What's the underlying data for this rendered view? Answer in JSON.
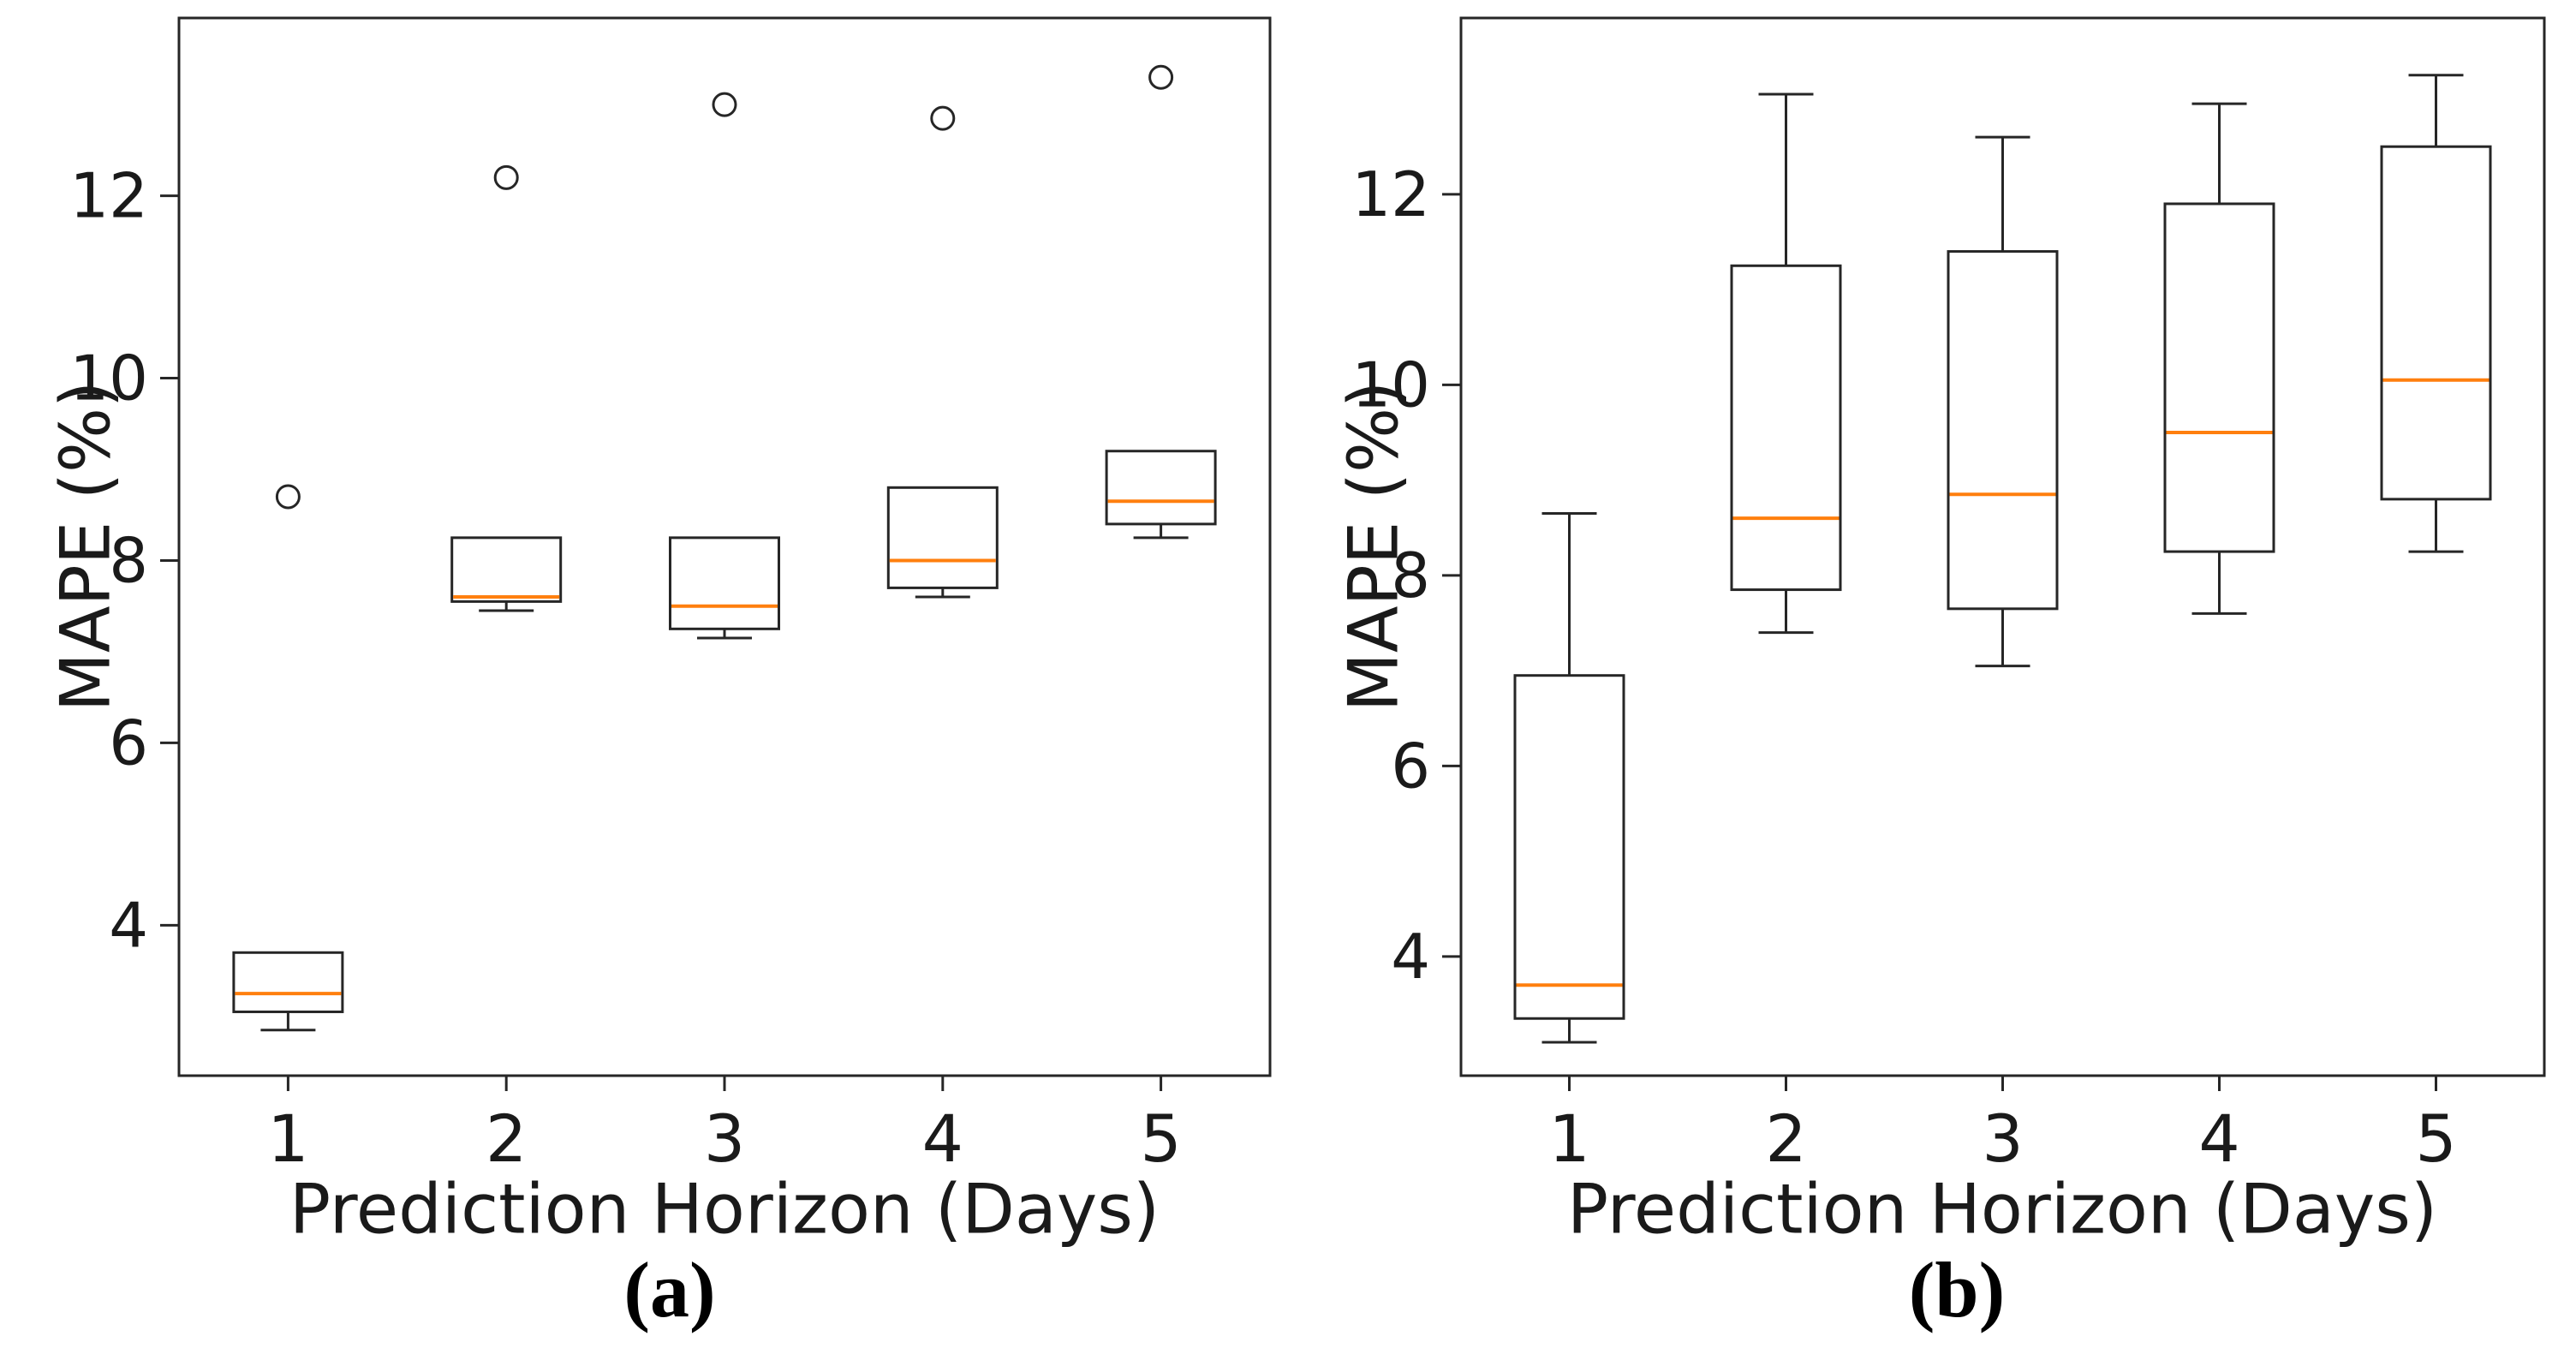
{
  "figure": {
    "background": "#ffffff",
    "panel_a_caption": "(a)",
    "panel_b_caption": "(b)"
  },
  "chart_data": [
    {
      "id": "a",
      "type": "box",
      "caption": "(a)",
      "xlabel": "Prediction Horizon (Days)",
      "ylabel": "MAPE (%)",
      "categories": [
        "1",
        "2",
        "3",
        "4",
        "5"
      ],
      "yticks": [
        4,
        6,
        8,
        10,
        12
      ],
      "ylim": [
        2.35,
        13.95
      ],
      "xlim": [
        0.5,
        5.5
      ],
      "grid": false,
      "legend": "none",
      "boxes": [
        {
          "day": "1",
          "whislo": 2.85,
          "q1": 3.05,
          "med": 3.25,
          "q3": 3.7,
          "whishi": 3.7,
          "fliers": [
            8.7
          ]
        },
        {
          "day": "2",
          "whislo": 7.45,
          "q1": 7.55,
          "med": 7.6,
          "q3": 8.25,
          "whishi": 8.25,
          "fliers": [
            12.2
          ]
        },
        {
          "day": "3",
          "whislo": 7.15,
          "q1": 7.25,
          "med": 7.5,
          "q3": 8.25,
          "whishi": 8.25,
          "fliers": [
            13.0
          ]
        },
        {
          "day": "4",
          "whislo": 7.6,
          "q1": 7.7,
          "med": 8.0,
          "q3": 8.8,
          "whishi": 8.8,
          "fliers": [
            12.85
          ]
        },
        {
          "day": "5",
          "whislo": 8.25,
          "q1": 8.4,
          "med": 8.65,
          "q3": 9.2,
          "whishi": 9.2,
          "fliers": [
            13.3
          ]
        }
      ],
      "colors": {
        "line": "#262626",
        "median": "#ff7f0e",
        "text": "#1a1a1a"
      }
    },
    {
      "id": "b",
      "type": "box",
      "caption": "(b)",
      "xlabel": "Prediction Horizon (Days)",
      "ylabel": "MAPE (%)",
      "categories": [
        "1",
        "2",
        "3",
        "4",
        "5"
      ],
      "yticks": [
        4,
        6,
        8,
        10,
        12
      ],
      "ylim": [
        2.75,
        13.85
      ],
      "xlim": [
        0.5,
        5.5
      ],
      "grid": false,
      "legend": "none",
      "boxes": [
        {
          "day": "1",
          "whislo": 3.1,
          "q1": 3.35,
          "med": 3.7,
          "q3": 6.95,
          "whishi": 8.65,
          "fliers": []
        },
        {
          "day": "2",
          "whislo": 7.4,
          "q1": 7.85,
          "med": 8.6,
          "q3": 11.25,
          "whishi": 13.05,
          "fliers": []
        },
        {
          "day": "3",
          "whislo": 7.05,
          "q1": 7.65,
          "med": 8.85,
          "q3": 11.4,
          "whishi": 12.6,
          "fliers": []
        },
        {
          "day": "4",
          "whislo": 7.6,
          "q1": 8.25,
          "med": 9.5,
          "q3": 11.9,
          "whishi": 12.95,
          "fliers": []
        },
        {
          "day": "5",
          "whislo": 8.25,
          "q1": 8.8,
          "med": 10.05,
          "q3": 12.5,
          "whishi": 13.25,
          "fliers": []
        }
      ],
      "colors": {
        "line": "#262626",
        "median": "#ff7f0e",
        "text": "#1a1a1a"
      }
    }
  ]
}
